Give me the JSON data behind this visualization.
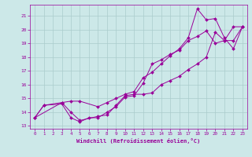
{
  "xlabel": "Windchill (Refroidissement éolien,°C)",
  "bg_color": "#cce8e8",
  "grid_color": "#aacccc",
  "line_color": "#990099",
  "xlim": [
    -0.5,
    23.5
  ],
  "ylim": [
    12.8,
    21.8
  ],
  "yticks": [
    13,
    14,
    15,
    16,
    17,
    18,
    19,
    20,
    21
  ],
  "xticks": [
    0,
    1,
    2,
    3,
    4,
    5,
    6,
    7,
    8,
    9,
    10,
    11,
    12,
    13,
    14,
    15,
    16,
    17,
    18,
    19,
    20,
    21,
    22,
    23
  ],
  "series": [
    {
      "x": [
        0,
        1,
        3,
        4,
        5,
        6,
        7,
        8,
        9,
        10,
        11,
        12,
        13,
        14,
        15,
        16,
        17,
        18,
        19,
        20,
        21,
        22,
        23
      ],
      "y": [
        13.6,
        14.5,
        14.6,
        13.6,
        13.3,
        13.6,
        13.6,
        14.0,
        14.4,
        15.1,
        15.2,
        16.1,
        17.5,
        17.8,
        18.2,
        18.5,
        19.2,
        19.5,
        19.9,
        19.0,
        19.2,
        20.2,
        20.2
      ]
    },
    {
      "x": [
        0,
        3,
        4,
        5,
        7,
        8,
        9,
        10,
        11,
        12,
        13,
        14,
        15,
        16,
        17,
        18,
        19,
        20,
        21,
        22,
        23
      ],
      "y": [
        13.6,
        14.7,
        14.8,
        14.8,
        14.4,
        14.7,
        15.0,
        15.3,
        15.5,
        16.5,
        16.9,
        17.5,
        18.1,
        18.6,
        19.4,
        21.5,
        20.7,
        20.8,
        19.4,
        18.6,
        20.2
      ]
    },
    {
      "x": [
        0,
        1,
        3,
        4,
        5,
        7,
        8,
        9,
        10,
        11,
        12,
        13,
        14,
        15,
        16,
        17,
        18,
        19,
        20,
        21,
        22,
        23
      ],
      "y": [
        13.6,
        14.5,
        14.7,
        14.0,
        13.4,
        13.7,
        13.8,
        14.5,
        15.2,
        15.3,
        15.3,
        15.4,
        16.0,
        16.3,
        16.6,
        17.1,
        17.5,
        18.0,
        19.8,
        19.2,
        19.2,
        20.2
      ]
    }
  ]
}
